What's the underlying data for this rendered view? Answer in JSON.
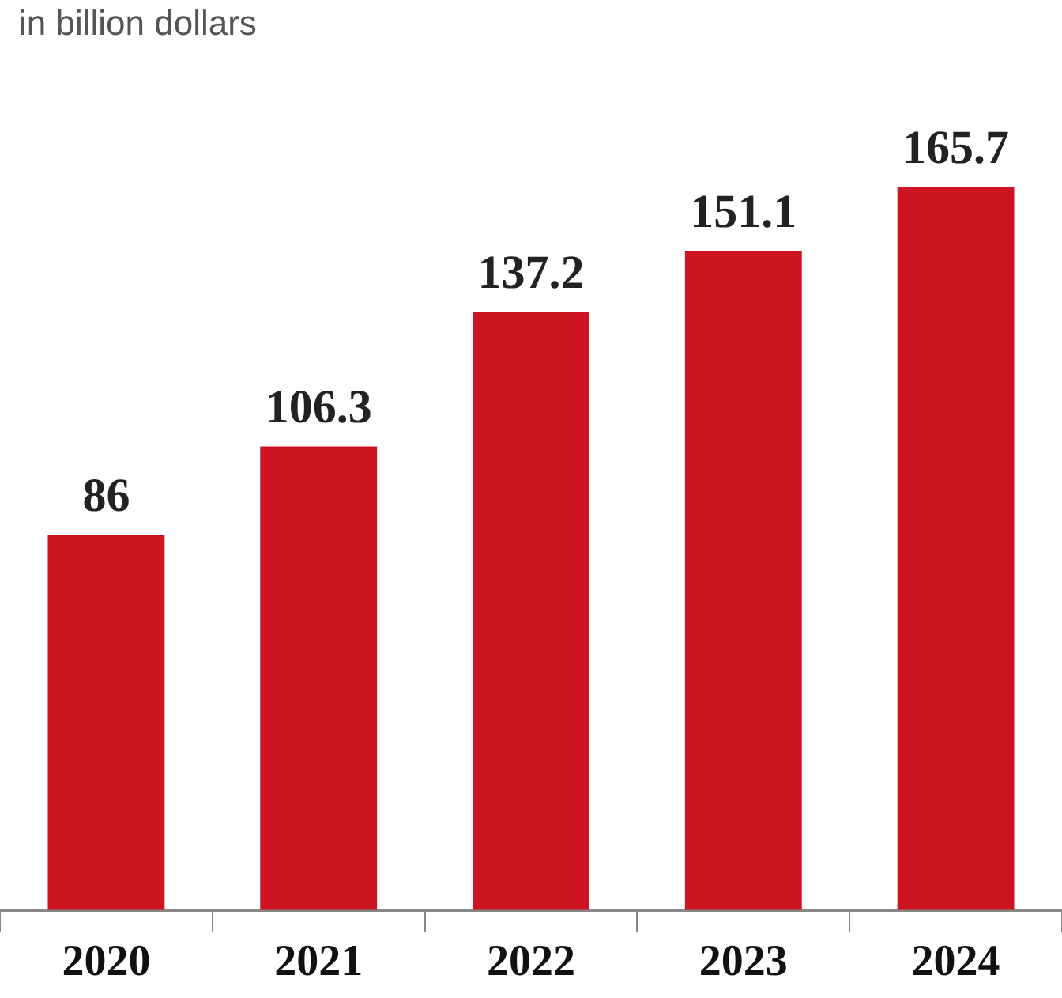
{
  "chart_data": {
    "type": "bar",
    "subtitle": "in billion dollars",
    "categories": [
      "2020",
      "2021",
      "2022",
      "2023",
      "2024"
    ],
    "values": [
      86,
      106.3,
      137.2,
      151.1,
      165.7
    ],
    "color": "#cc1423",
    "data_labels": true,
    "grid": false,
    "legend": false
  }
}
